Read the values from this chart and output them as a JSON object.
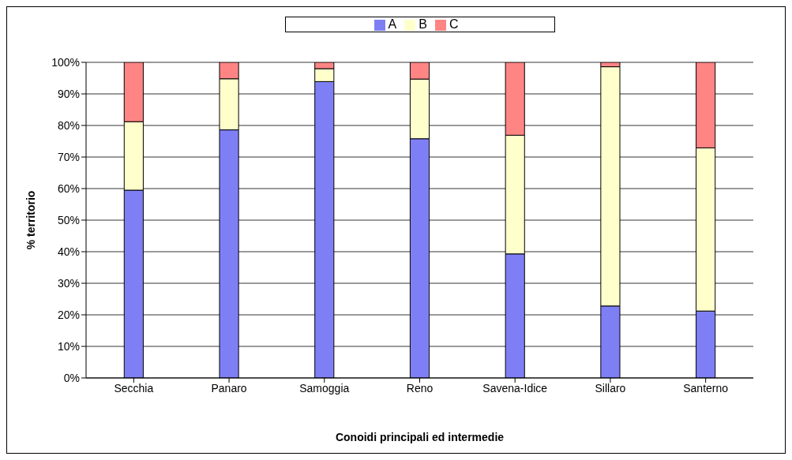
{
  "chart_data": {
    "type": "bar",
    "stacked": true,
    "xlabel": "Conoidi principali ed intermedie",
    "ylabel": "% territorio",
    "categories": [
      "Secchia",
      "Panaro",
      "Samoggia",
      "Reno",
      "Savena-Idice",
      "Sillaro",
      "Santerno"
    ],
    "series": [
      {
        "name": "A",
        "color": "#7f7ff5",
        "values": [
          59.5,
          78.6,
          93.9,
          75.8,
          39.3,
          22.8,
          21.2
        ]
      },
      {
        "name": "B",
        "color": "#ffffcc",
        "values": [
          21.7,
          16.2,
          4.1,
          18.9,
          37.6,
          75.8,
          51.7
        ]
      },
      {
        "name": "C",
        "color": "#ff8585",
        "values": [
          18.8,
          5.2,
          2.0,
          5.3,
          23.1,
          1.4,
          27.1
        ]
      }
    ],
    "ylim": [
      0,
      100
    ],
    "yticks": [
      {
        "value": 0,
        "label": "0%"
      },
      {
        "value": 10,
        "label": "10%"
      },
      {
        "value": 20,
        "label": "20%"
      },
      {
        "value": 30,
        "label": "30%"
      },
      {
        "value": 40,
        "label": "40%"
      },
      {
        "value": 50,
        "label": "50%"
      },
      {
        "value": 60,
        "label": "60%"
      },
      {
        "value": 70,
        "label": "70%"
      },
      {
        "value": 80,
        "label": "80%"
      },
      {
        "value": 90,
        "label": "90%"
      },
      {
        "value": 100,
        "label": "100%"
      }
    ],
    "grid": "y",
    "legend": "top"
  }
}
